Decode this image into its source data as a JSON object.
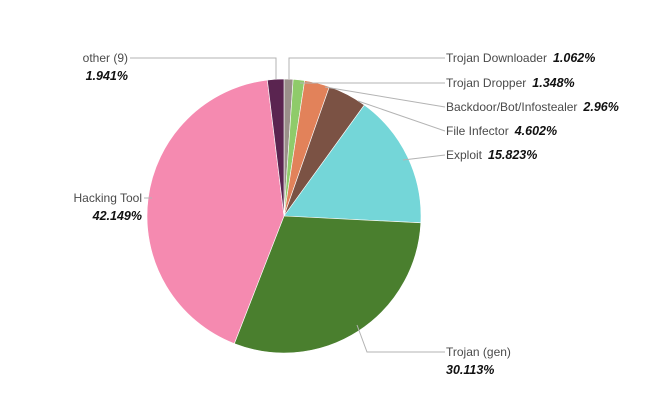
{
  "chart_data": {
    "type": "pie",
    "title": "",
    "start_angle_deg": 0,
    "direction": "clockwise",
    "slices": [
      {
        "label": "Trojan Downloader",
        "value_text": "1.062%",
        "value": 1.062,
        "color": "#9a8f8a"
      },
      {
        "label": "Trojan Dropper",
        "value_text": "1.348%",
        "value": 1.348,
        "color": "#8fcb6a"
      },
      {
        "label": "Backdoor/Bot/Infostealer",
        "value_text": "2.96%",
        "value": 2.96,
        "color": "#e2825a"
      },
      {
        "label": "File Infector",
        "value_text": "4.602%",
        "value": 4.602,
        "color": "#7b5244"
      },
      {
        "label": "Exploit",
        "value_text": "15.823%",
        "value": 15.823,
        "color": "#74d6d8"
      },
      {
        "label": "Trojan (gen)",
        "value_text": "30.113%",
        "value": 30.113,
        "color": "#4a7f2e"
      },
      {
        "label": "Hacking Tool",
        "value_text": "42.149%",
        "value": 42.149,
        "color": "#f58ab0"
      },
      {
        "label": "other (9)",
        "value_text": "1.941%",
        "value": 1.941,
        "color": "#5a2450"
      }
    ]
  }
}
